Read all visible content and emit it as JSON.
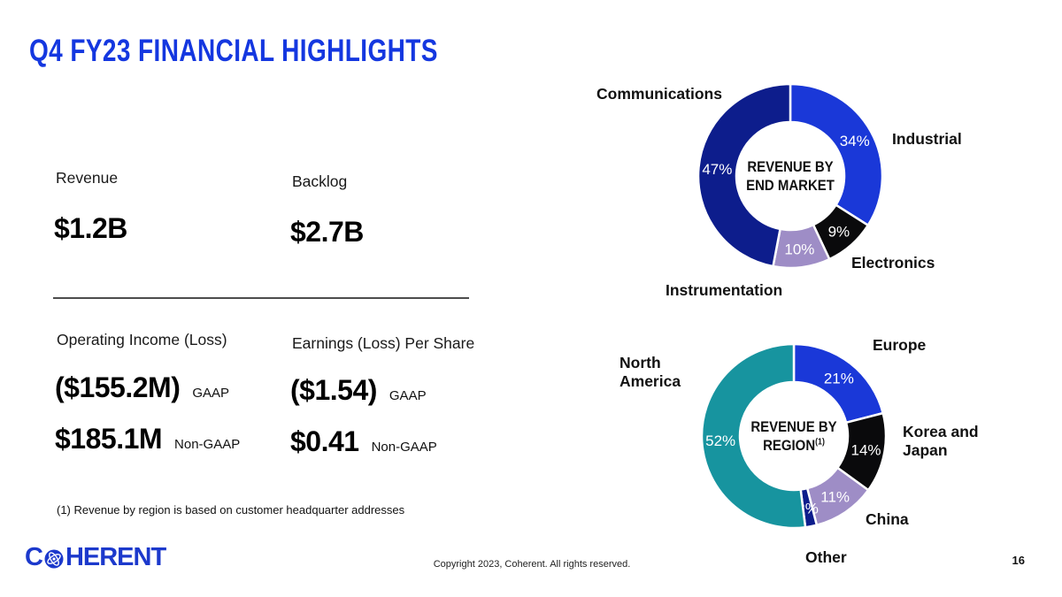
{
  "slide": {
    "title": "Q4 FY23 FINANCIAL HIGHLIGHTS",
    "footnote": "(1) Revenue by region is based on customer headquarter addresses",
    "copyright": "Copyright 2023, Coherent. All rights reserved.",
    "page_number": "16",
    "logo": {
      "first_letter": "C",
      "rest": "HERENT",
      "icon": "atom-globe-icon"
    }
  },
  "metrics": {
    "revenue": {
      "label": "Revenue",
      "value": "$1.2B"
    },
    "backlog": {
      "label": "Backlog",
      "value": "$2.7B"
    },
    "operating_income": {
      "label": "Operating Income (Loss)",
      "gaap_value": "($155.2M)",
      "gaap_tag": "GAAP",
      "non_gaap_value": "$185.1M",
      "non_gaap_tag": "Non-GAAP"
    },
    "eps": {
      "label": "Earnings (Loss) Per Share",
      "gaap_value": "($1.54)",
      "gaap_tag": "GAAP",
      "non_gaap_value": "$0.41",
      "non_gaap_tag": "Non-GAAP"
    }
  },
  "chart_data": [
    {
      "type": "pie",
      "donut": true,
      "title": "REVENUE BY END MARKET",
      "center_label_lines": [
        "REVENUE BY",
        "END MARKET"
      ],
      "center_label_sup": "",
      "categories": [
        "Industrial",
        "Electronics",
        "Instrumentation",
        "Communications"
      ],
      "values": [
        34,
        9,
        10,
        47
      ],
      "labels": [
        "34%",
        "9%",
        "10%",
        "47%"
      ],
      "colors": [
        "#1a38d8",
        "#0a0a0c",
        "#9e8dc6",
        "#0d1d8c"
      ],
      "start_angle_deg": 0,
      "direction": "clockwise",
      "legend_position": "around-slices"
    },
    {
      "type": "pie",
      "donut": true,
      "title": "REVENUE BY REGION (1)",
      "center_label_lines": [
        "REVENUE BY",
        "REGION"
      ],
      "center_label_sup": "(1)",
      "categories": [
        "Europe",
        "Korea and Japan",
        "China",
        "Other",
        "North America"
      ],
      "values": [
        21,
        14,
        11,
        2,
        52
      ],
      "labels": [
        "21%",
        "14%",
        "11%",
        "2%",
        "52%"
      ],
      "colors": [
        "#1a38d8",
        "#0a0a0c",
        "#9e8dc6",
        "#0d1d8c",
        "#17949f"
      ],
      "start_angle_deg": 0,
      "direction": "clockwise",
      "legend_position": "around-slices"
    }
  ]
}
